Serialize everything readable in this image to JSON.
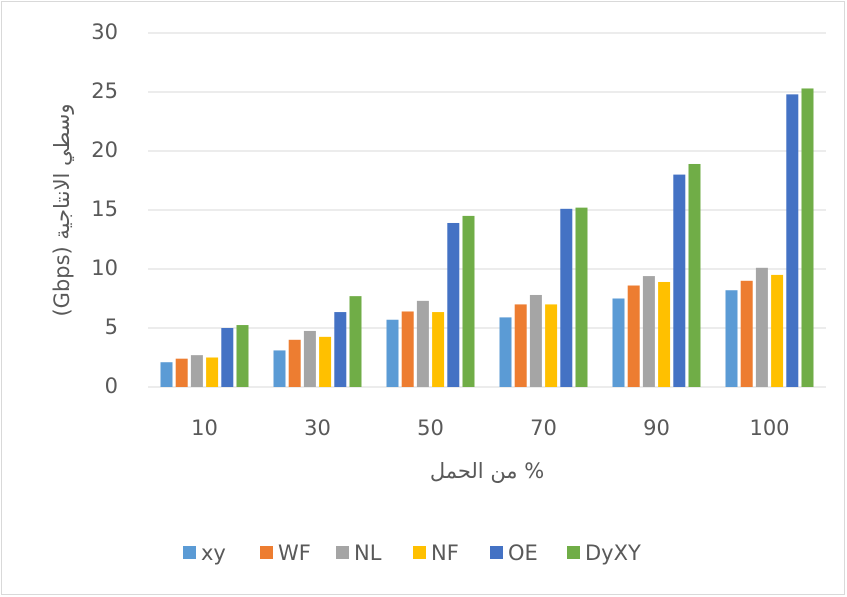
{
  "chart_data": {
    "type": "bar",
    "ylabel": "وسطي الانتاجية (Gbps)",
    "xlabel": "% من الحمل",
    "categories": [
      "10",
      "30",
      "50",
      "70",
      "90",
      "100"
    ],
    "series": [
      {
        "name": "xy",
        "color": "#5b9bd5",
        "values": [
          2.1,
          3.1,
          5.7,
          5.9,
          7.5,
          8.2
        ]
      },
      {
        "name": "WF",
        "color": "#ed7d31",
        "values": [
          2.4,
          4.0,
          6.4,
          7.0,
          8.6,
          9.0
        ]
      },
      {
        "name": "NL",
        "color": "#a5a5a5",
        "values": [
          2.7,
          4.75,
          7.3,
          7.8,
          9.4,
          10.1
        ]
      },
      {
        "name": "NF",
        "color": "#ffc000",
        "values": [
          2.5,
          4.25,
          6.35,
          7.0,
          8.9,
          9.5
        ]
      },
      {
        "name": "OE",
        "color": "#4472c4",
        "values": [
          5.0,
          6.35,
          13.9,
          15.1,
          18.0,
          24.8
        ]
      },
      {
        "name": "DyXY",
        "color": "#70ad47",
        "values": [
          5.25,
          7.7,
          14.5,
          15.2,
          18.9,
          25.3
        ]
      }
    ],
    "ylim": [
      0,
      30
    ],
    "yticks": [
      0,
      5,
      10,
      15,
      20,
      25,
      30
    ],
    "grid": true,
    "legend": "bottom"
  }
}
